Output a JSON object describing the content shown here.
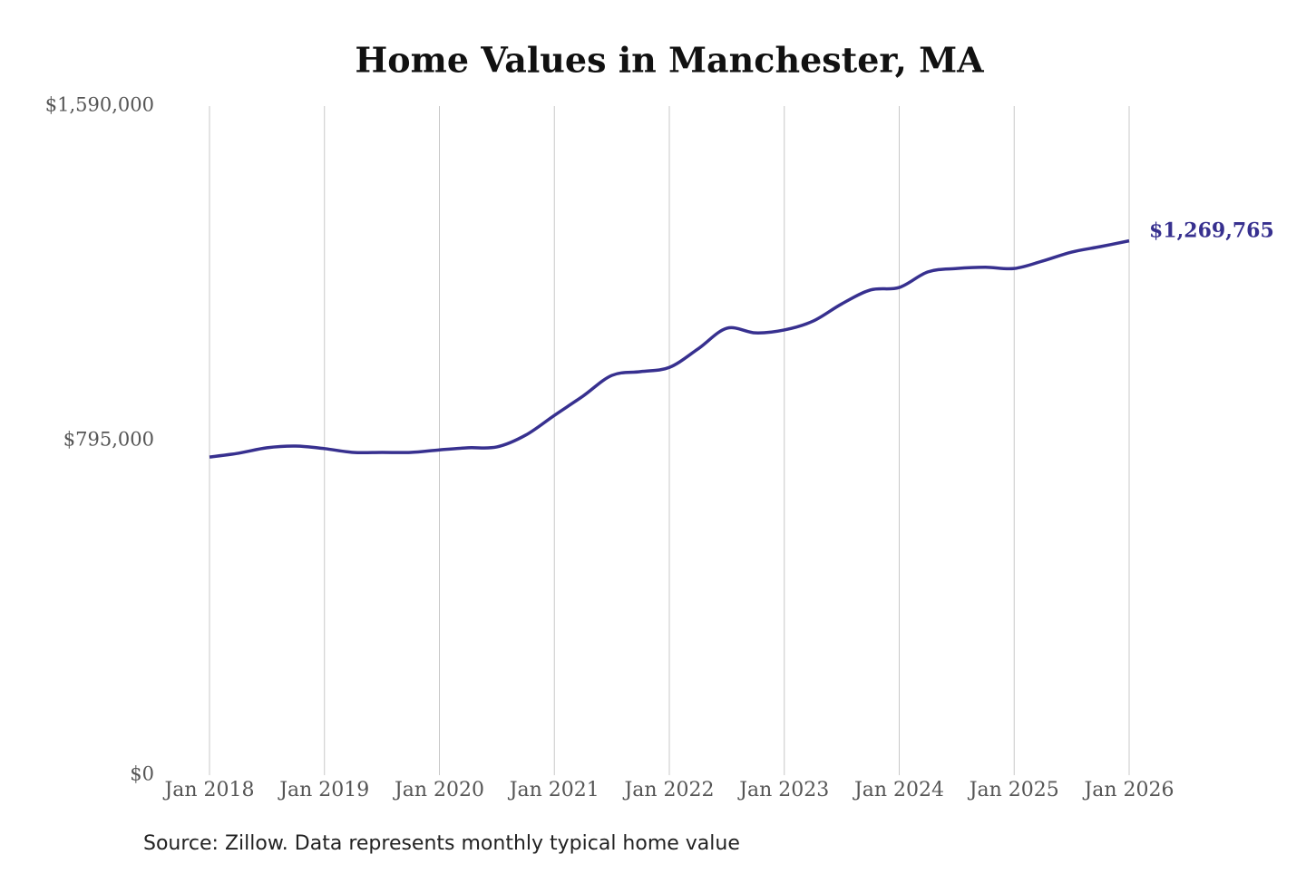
{
  "chart_data": {
    "type": "line",
    "title": "Home Values in Manchester, MA",
    "source": "Source: Zillow. Data represents monthly typical home value",
    "categories": [
      "Jan 2018",
      null,
      null,
      null,
      "Jan 2019",
      null,
      null,
      null,
      "Jan 2020",
      null,
      null,
      null,
      "Jan 2021",
      null,
      null,
      null,
      "Jan 2022",
      null,
      null,
      null,
      "Jan 2023",
      null,
      null,
      null,
      "Jan 2024",
      null,
      null,
      null,
      "Jan 2025",
      null,
      null,
      null,
      "Jan 2026"
    ],
    "series": [
      {
        "name": "Typical home value",
        "color": "#37308f",
        "values": [
          756000,
          765000,
          778000,
          782000,
          776000,
          767000,
          767000,
          767000,
          773000,
          778000,
          780000,
          808000,
          855000,
          901000,
          950000,
          959000,
          969000,
          1013000,
          1062000,
          1051000,
          1058000,
          1079000,
          1120000,
          1153000,
          1159000,
          1196000,
          1204000,
          1207000,
          1204000,
          1222000,
          1243000,
          1256000,
          1269765
        ],
        "value_labels": [
          null,
          null,
          null,
          null,
          null,
          null,
          null,
          null,
          null,
          null,
          null,
          null,
          null,
          null,
          null,
          null,
          null,
          null,
          null,
          null,
          null,
          null,
          null,
          null,
          null,
          null,
          null,
          null,
          null,
          null,
          null,
          null,
          "$1,269,765"
        ]
      }
    ],
    "ylim": [
      0,
      1590000
    ],
    "yticks": [
      {
        "value": 0,
        "label": "$0"
      },
      {
        "value": 795000,
        "label": "$795,000"
      },
      {
        "value": 1590000,
        "label": "$1,590,000"
      }
    ],
    "grid": true
  }
}
